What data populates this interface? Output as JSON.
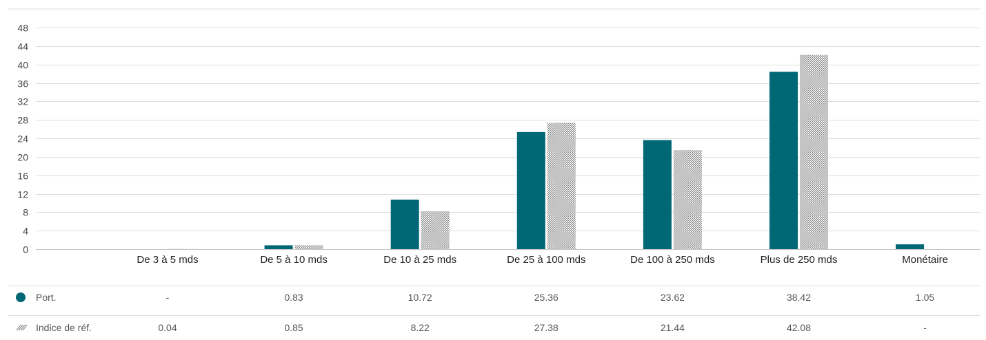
{
  "colors": {
    "port": "#006775",
    "index_pattern": "#777777",
    "grid": "#dddddd"
  },
  "chart_data": {
    "type": "bar",
    "categories": [
      "De 3 à 5 mds",
      "De 5 à 10 mds",
      "De 10 à 25 mds",
      "De 25 à 100 mds",
      "De 100 à 250 mds",
      "Plus de 250 mds",
      "Monétaire"
    ],
    "series": [
      {
        "name": "Port.",
        "values": [
          null,
          0.83,
          10.72,
          25.36,
          23.62,
          38.42,
          1.05
        ]
      },
      {
        "name": "Indice de réf.",
        "values": [
          0.04,
          0.85,
          8.22,
          27.38,
          21.44,
          42.08,
          null
        ]
      }
    ],
    "table": {
      "rows": [
        {
          "label": "Port.",
          "cells": [
            "-",
            "0.83",
            "10.72",
            "25.36",
            "23.62",
            "38.42",
            "1.05"
          ]
        },
        {
          "label": "Indice de réf.",
          "cells": [
            "0.04",
            "0.85",
            "8.22",
            "27.38",
            "21.44",
            "42.08",
            "-"
          ]
        }
      ]
    },
    "yticks": [
      0,
      4,
      8,
      12,
      16,
      20,
      24,
      28,
      32,
      36,
      40,
      44,
      48
    ],
    "ylim": [
      0,
      48
    ],
    "grid": true,
    "legend": "table-left"
  }
}
